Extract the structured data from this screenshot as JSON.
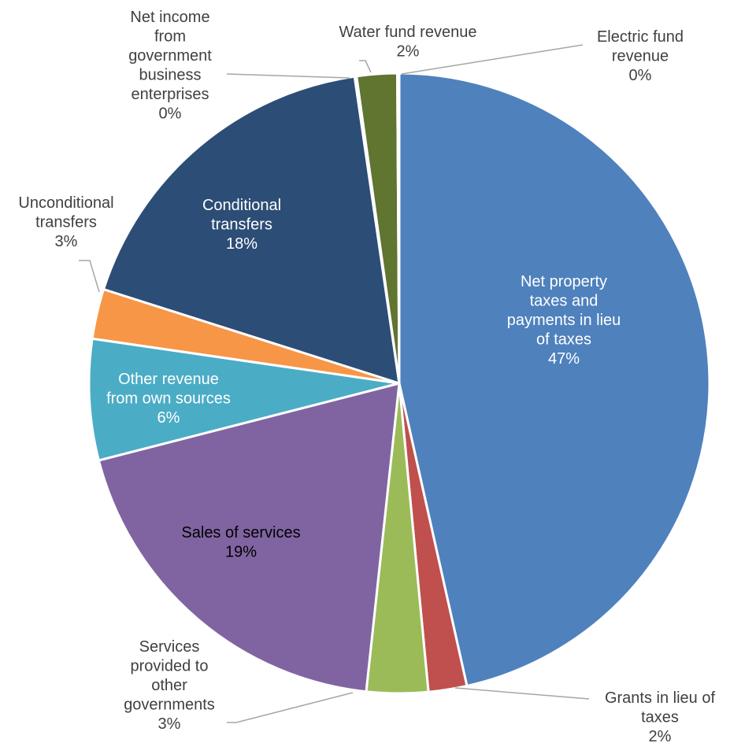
{
  "chart_data": {
    "type": "pie",
    "title": "",
    "slices": [
      {
        "label": "Net property taxes and payments in lieu of taxes",
        "percent": "47%",
        "value": 46.5,
        "color": "#4F81BD",
        "label_color": "#ffffff",
        "label_lines": [
          "Net property",
          "taxes and",
          "payments in lieu",
          "of taxes",
          "47%"
        ]
      },
      {
        "label": "Grants in lieu of taxes",
        "percent": "2%",
        "value": 2.0,
        "color": "#C0504D",
        "label_color": "#404040",
        "label_lines": [
          "Grants in lieu of",
          "taxes",
          "2%"
        ]
      },
      {
        "label": "Services provided to other governments",
        "percent": "3%",
        "value": 3.2,
        "color": "#9BBB59",
        "label_color": "#404040",
        "label_lines": [
          "Services",
          "provided to",
          "other",
          "governments",
          "3%"
        ]
      },
      {
        "label": "Sales of services",
        "percent": "19%",
        "value": 19.3,
        "color": "#8064A2",
        "label_color": "#000000",
        "label_lines": [
          "Sales of services",
          "19%"
        ]
      },
      {
        "label": "Other revenue from own sources",
        "percent": "6%",
        "value": 6.3,
        "color": "#4BACC6",
        "label_color": "#ffffff",
        "label_lines": [
          "Other revenue",
          "from own sources",
          "6%"
        ]
      },
      {
        "label": "Unconditional transfers",
        "percent": "3%",
        "value": 2.6,
        "color": "#F79646",
        "label_color": "#404040",
        "label_lines": [
          "Unconditional",
          "transfers",
          "3%"
        ]
      },
      {
        "label": "Conditional transfers",
        "percent": "18%",
        "value": 17.8,
        "color": "#2C4D75",
        "label_color": "#ffffff",
        "label_lines": [
          "Conditional",
          "transfers",
          "18%"
        ]
      },
      {
        "label": "Net income from government business enterprises",
        "percent": "0%",
        "value": 0.1,
        "color": "#7F7F7F",
        "label_color": "#404040",
        "label_lines": [
          "Net income",
          "from",
          "government",
          "business",
          "enterprises",
          "0%"
        ]
      },
      {
        "label": "Water fund revenue",
        "percent": "2%",
        "value": 2.1,
        "color": "#5F7530",
        "label_color": "#404040",
        "label_lines": [
          "Water fund revenue",
          "2%"
        ]
      },
      {
        "label": "Electric fund revenue",
        "percent": "0%",
        "value": 0.1,
        "color": "#A5A5A5",
        "label_color": "#404040",
        "label_lines": [
          "Electric fund",
          "revenue",
          "0%"
        ]
      }
    ],
    "legend": "none"
  }
}
